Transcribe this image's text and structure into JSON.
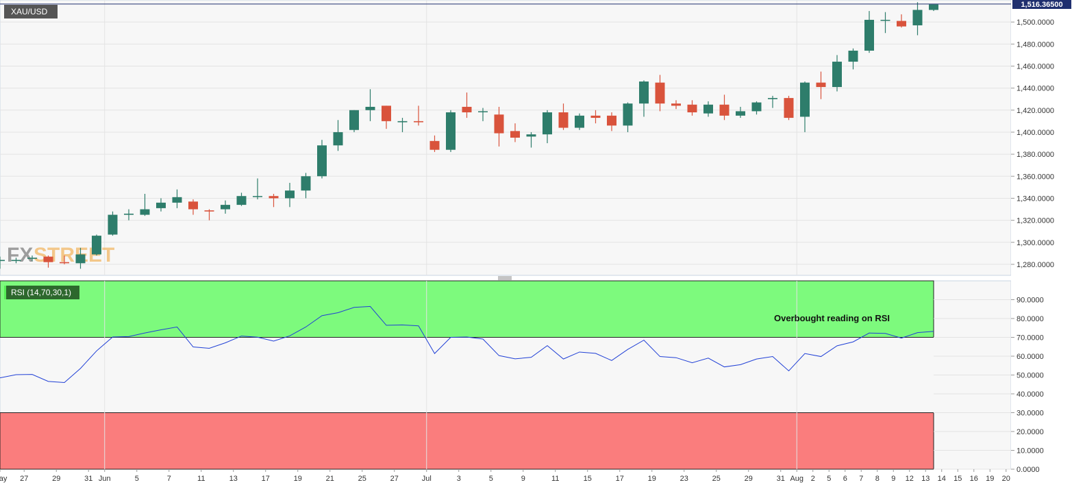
{
  "chart_data": [
    {
      "type": "candlestick",
      "symbol": "XAU/USD",
      "last_price_label": "1,516.36500",
      "last_price": 1516.365,
      "ylim": [
        1270,
        1520
      ],
      "y_ticks": [
        "1,280.0000",
        "1,300.0000",
        "1,320.0000",
        "1,340.0000",
        "1,360.0000",
        "1,380.0000",
        "1,400.0000",
        "1,420.0000",
        "1,440.0000",
        "1,460.0000",
        "1,480.0000",
        "1,500.0000"
      ],
      "y_tick_values": [
        1280,
        1300,
        1320,
        1340,
        1360,
        1380,
        1400,
        1420,
        1440,
        1460,
        1480,
        1500
      ],
      "grid": true,
      "bull_color": "#2e7d6b",
      "bear_color": "#d9533c",
      "candles": [
        {
          "date": "May 24",
          "o": 1283,
          "h": 1287,
          "l": 1276,
          "c": 1284
        },
        {
          "date": "May 27",
          "o": 1283,
          "h": 1286,
          "l": 1281,
          "c": 1284
        },
        {
          "date": "May 28",
          "o": 1285,
          "h": 1288,
          "l": 1283,
          "c": 1286
        },
        {
          "date": "May 29",
          "o": 1287,
          "h": 1288,
          "l": 1277,
          "c": 1282
        },
        {
          "date": "May 30",
          "o": 1282,
          "h": 1288,
          "l": 1280,
          "c": 1281
        },
        {
          "date": "May 31",
          "o": 1281,
          "h": 1295,
          "l": 1276,
          "c": 1289
        },
        {
          "date": "Jun 3",
          "o": 1289,
          "h": 1307,
          "l": 1288,
          "c": 1306
        },
        {
          "date": "Jun 4",
          "o": 1307,
          "h": 1328,
          "l": 1306,
          "c": 1325
        },
        {
          "date": "Jun 5",
          "o": 1325,
          "h": 1330,
          "l": 1320,
          "c": 1326
        },
        {
          "date": "Jun 6",
          "o": 1325,
          "h": 1344,
          "l": 1324,
          "c": 1330
        },
        {
          "date": "Jun 7",
          "o": 1331,
          "h": 1340,
          "l": 1328,
          "c": 1336
        },
        {
          "date": "Jun 10",
          "o": 1336,
          "h": 1348,
          "l": 1331,
          "c": 1341
        },
        {
          "date": "Jun 11",
          "o": 1337,
          "h": 1339,
          "l": 1325,
          "c": 1330
        },
        {
          "date": "Jun 12",
          "o": 1329,
          "h": 1330,
          "l": 1320,
          "c": 1328
        },
        {
          "date": "Jun 13",
          "o": 1330,
          "h": 1338,
          "l": 1326,
          "c": 1334
        },
        {
          "date": "Jun 14",
          "o": 1334,
          "h": 1345,
          "l": 1333,
          "c": 1342
        },
        {
          "date": "Jun 17",
          "o": 1342,
          "h": 1358,
          "l": 1339,
          "c": 1342
        },
        {
          "date": "Jun 18",
          "o": 1342,
          "h": 1344,
          "l": 1332,
          "c": 1340
        },
        {
          "date": "Jun 19",
          "o": 1340,
          "h": 1354,
          "l": 1332,
          "c": 1347
        },
        {
          "date": "Jun 20",
          "o": 1347,
          "h": 1363,
          "l": 1340,
          "c": 1360
        },
        {
          "date": "Jun 21",
          "o": 1360,
          "h": 1393,
          "l": 1358,
          "c": 1388
        },
        {
          "date": "Jun 24",
          "o": 1388,
          "h": 1411,
          "l": 1383,
          "c": 1400
        },
        {
          "date": "Jun 25",
          "o": 1402,
          "h": 1420,
          "l": 1400,
          "c": 1420
        },
        {
          "date": "Jun 26",
          "o": 1420,
          "h": 1439,
          "l": 1410,
          "c": 1423
        },
        {
          "date": "Jun 27",
          "o": 1424,
          "h": 1424,
          "l": 1403,
          "c": 1410
        },
        {
          "date": "Jun 28",
          "o": 1409,
          "h": 1413,
          "l": 1400,
          "c": 1410
        },
        {
          "date": "Jul 1",
          "o": 1410,
          "h": 1424,
          "l": 1406,
          "c": 1409
        },
        {
          "date": "Jul 2",
          "o": 1392,
          "h": 1397,
          "l": 1382,
          "c": 1384
        },
        {
          "date": "Jul 3",
          "o": 1384,
          "h": 1420,
          "l": 1382,
          "c": 1418
        },
        {
          "date": "Jul 4",
          "o": 1423,
          "h": 1436,
          "l": 1413,
          "c": 1418
        },
        {
          "date": "Jul 5",
          "o": 1419,
          "h": 1422,
          "l": 1410,
          "c": 1419
        },
        {
          "date": "Jul 8",
          "o": 1416,
          "h": 1423,
          "l": 1387,
          "c": 1399
        },
        {
          "date": "Jul 9",
          "o": 1401,
          "h": 1408,
          "l": 1391,
          "c": 1395
        },
        {
          "date": "Jul 10",
          "o": 1396,
          "h": 1400,
          "l": 1386,
          "c": 1398
        },
        {
          "date": "Jul 11",
          "o": 1398,
          "h": 1420,
          "l": 1390,
          "c": 1418
        },
        {
          "date": "Jul 12",
          "o": 1418,
          "h": 1426,
          "l": 1402,
          "c": 1404
        },
        {
          "date": "Jul 15",
          "o": 1404,
          "h": 1417,
          "l": 1402,
          "c": 1415
        },
        {
          "date": "Jul 16",
          "o": 1415,
          "h": 1420,
          "l": 1408,
          "c": 1413
        },
        {
          "date": "Jul 17",
          "o": 1415,
          "h": 1418,
          "l": 1401,
          "c": 1406
        },
        {
          "date": "Jul 18",
          "o": 1406,
          "h": 1427,
          "l": 1400,
          "c": 1426
        },
        {
          "date": "Jul 19",
          "o": 1426,
          "h": 1447,
          "l": 1414,
          "c": 1446
        },
        {
          "date": "Jul 22",
          "o": 1445,
          "h": 1452,
          "l": 1419,
          "c": 1426
        },
        {
          "date": "Jul 23",
          "o": 1426,
          "h": 1429,
          "l": 1421,
          "c": 1424
        },
        {
          "date": "Jul 24",
          "o": 1425,
          "h": 1429,
          "l": 1415,
          "c": 1418
        },
        {
          "date": "Jul 25",
          "o": 1417,
          "h": 1428,
          "l": 1414,
          "c": 1425
        },
        {
          "date": "Jul 26",
          "o": 1425,
          "h": 1434,
          "l": 1411,
          "c": 1415
        },
        {
          "date": "Jul 29",
          "o": 1415,
          "h": 1423,
          "l": 1413,
          "c": 1419
        },
        {
          "date": "Jul 30",
          "o": 1419,
          "h": 1428,
          "l": 1416,
          "c": 1427
        },
        {
          "date": "Jul 31",
          "o": 1430,
          "h": 1433,
          "l": 1422,
          "c": 1431
        },
        {
          "date": "Aug 1",
          "o": 1431,
          "h": 1433,
          "l": 1411,
          "c": 1413
        },
        {
          "date": "Aug 2",
          "o": 1414,
          "h": 1446,
          "l": 1400,
          "c": 1445
        },
        {
          "date": "Aug 5",
          "o": 1445,
          "h": 1455,
          "l": 1430,
          "c": 1441
        },
        {
          "date": "Aug 6",
          "o": 1441,
          "h": 1470,
          "l": 1437,
          "c": 1464
        },
        {
          "date": "Aug 7",
          "o": 1464,
          "h": 1476,
          "l": 1457,
          "c": 1474
        },
        {
          "date": "Aug 8",
          "o": 1474,
          "h": 1510,
          "l": 1472,
          "c": 1502
        },
        {
          "date": "Aug 9",
          "o": 1502,
          "h": 1509,
          "l": 1490,
          "c": 1502
        },
        {
          "date": "Aug 12",
          "o": 1501,
          "h": 1507,
          "l": 1495,
          "c": 1496
        },
        {
          "date": "Aug 13",
          "o": 1497,
          "h": 1518,
          "l": 1488,
          "c": 1511
        },
        {
          "date": "Aug 14",
          "o": 1511,
          "h": 1516,
          "l": 1510,
          "c": 1516
        }
      ],
      "watermark": {
        "left": "FX",
        "right": "STREET"
      }
    },
    {
      "type": "line",
      "indicator_label": "RSI (14,70,30,1)",
      "ylim": [
        0,
        100
      ],
      "y_ticks": [
        "0.0000",
        "10.0000",
        "20.0000",
        "30.0000",
        "40.0000",
        "50.0000",
        "60.0000",
        "70.0000",
        "80.0000",
        "90.0000"
      ],
      "y_tick_values": [
        0,
        10,
        20,
        30,
        40,
        50,
        60,
        70,
        80,
        90
      ],
      "overbought": 70,
      "oversold": 30,
      "overbought_color": "#7dfa7d",
      "oversold_color": "#fa7d7d",
      "line_color": "#1f3fd6",
      "annotation": "Overbought reading on RSI",
      "values": [
        48.5,
        50.2,
        50.3,
        46.6,
        46.0,
        53.5,
        62.8,
        70.2,
        70.4,
        72.3,
        74.0,
        75.5,
        64.9,
        64.2,
        67.1,
        70.7,
        70.1,
        68.0,
        70.8,
        75.5,
        81.5,
        83.1,
        85.9,
        86.4,
        76.4,
        76.6,
        76.1,
        61.4,
        70.0,
        70.2,
        69.1,
        60.3,
        58.6,
        59.4,
        65.6,
        58.5,
        62.2,
        61.5,
        57.7,
        63.6,
        68.5,
        59.8,
        59.2,
        56.5,
        59.0,
        54.3,
        55.5,
        58.5,
        59.8,
        52.2,
        61.4,
        59.8,
        65.5,
        67.6,
        72.3,
        72.1,
        69.6,
        72.5,
        73.2
      ]
    }
  ],
  "x_axis": {
    "labels": [
      {
        "text": "May",
        "i": 0
      },
      {
        "text": "27",
        "i": 1.5
      },
      {
        "text": "29",
        "i": 3.5
      },
      {
        "text": "31",
        "i": 5.5
      },
      {
        "text": "Jun",
        "i": 6.5
      },
      {
        "text": "5",
        "i": 8.5
      },
      {
        "text": "7",
        "i": 10.5
      },
      {
        "text": "11",
        "i": 12.5
      },
      {
        "text": "13",
        "i": 14.5
      },
      {
        "text": "17",
        "i": 16.5
      },
      {
        "text": "19",
        "i": 18.5
      },
      {
        "text": "21",
        "i": 20.5
      },
      {
        "text": "25",
        "i": 22.5
      },
      {
        "text": "27",
        "i": 24.5
      },
      {
        "text": "Jul",
        "i": 26.5
      },
      {
        "text": "3",
        "i": 28.5
      },
      {
        "text": "5",
        "i": 30.5
      },
      {
        "text": "9",
        "i": 32.5
      },
      {
        "text": "11",
        "i": 34.5
      },
      {
        "text": "15",
        "i": 36.5
      },
      {
        "text": "17",
        "i": 38.5
      },
      {
        "text": "19",
        "i": 40.5
      },
      {
        "text": "23",
        "i": 42.5
      },
      {
        "text": "25",
        "i": 44.5
      },
      {
        "text": "29",
        "i": 46.5
      },
      {
        "text": "31",
        "i": 48.5
      },
      {
        "text": "Aug",
        "i": 49.5
      },
      {
        "text": "2",
        "i": 50.5
      },
      {
        "text": "5",
        "i": 51.5
      },
      {
        "text": "6",
        "i": 52.5
      },
      {
        "text": "7",
        "i": 53.5
      },
      {
        "text": "8",
        "i": 54.5
      },
      {
        "text": "9",
        "i": 55.5
      },
      {
        "text": "12",
        "i": 56.5
      },
      {
        "text": "13",
        "i": 57.5
      },
      {
        "text": "14",
        "i": 58.5
      },
      {
        "text": "15",
        "i": 59.5
      },
      {
        "text": "16",
        "i": 60.5
      },
      {
        "text": "19",
        "i": 61.5
      },
      {
        "text": "20",
        "i": 62.5
      }
    ],
    "month_gridlines": [
      6.5,
      26.5,
      49.5
    ]
  }
}
